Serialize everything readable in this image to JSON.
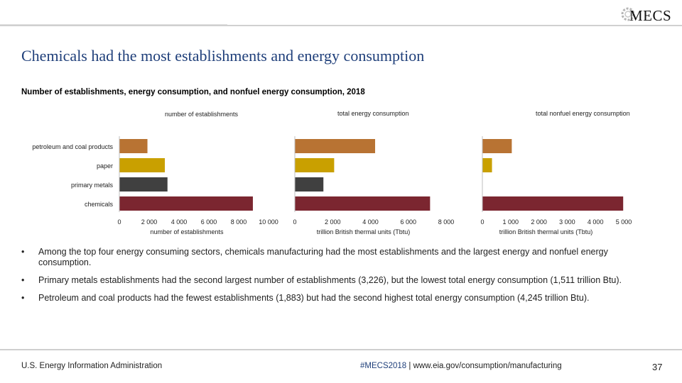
{
  "header": {
    "logo_text": "MECS",
    "title": "Chemicals had the most establishments and energy consumption"
  },
  "chart_data": {
    "type": "bar",
    "orientation": "horizontal",
    "title": "Number of establishments, energy consumption, and nonfuel energy consumption, 2018",
    "categories": [
      "petroleum and coal products",
      "paper",
      "primary metals",
      "chemicals"
    ],
    "panels": [
      {
        "name": "number of establishments",
        "xlabel": "number of establishments",
        "xlim": [
          0,
          10000
        ],
        "ticks": [
          0,
          2000,
          4000,
          6000,
          8000,
          10000
        ],
        "tick_labels": [
          "0",
          "2 000",
          "4 000",
          "6 000",
          "8 000",
          "10 000"
        ],
        "values": [
          1883,
          3050,
          3226,
          8950
        ]
      },
      {
        "name": "total energy consumption",
        "xlabel": "trillion British thermal units (Tbtu)",
        "xlim": [
          0,
          8000
        ],
        "ticks": [
          0,
          2000,
          4000,
          6000,
          8000
        ],
        "tick_labels": [
          "0",
          "2 000",
          "4 000",
          "6 000",
          "8 000"
        ],
        "values": [
          4245,
          2080,
          1511,
          7150
        ]
      },
      {
        "name": "total nonfuel energy consumption",
        "xlabel": "trillion British thermal units (Tbtu)",
        "xlim": [
          0,
          5000
        ],
        "ticks": [
          0,
          1000,
          2000,
          3000,
          4000,
          5000
        ],
        "tick_labels": [
          "0",
          "1 000",
          "2 000",
          "3 000",
          "4 000",
          "5 000"
        ],
        "values": [
          1040,
          340,
          0,
          4980
        ]
      }
    ],
    "colors": [
      "#b87333",
      "#c9a000",
      "#404040",
      "#7b2630"
    ],
    "grid": false,
    "legend": "none"
  },
  "bullets": [
    "Among the top four energy consuming sectors, chemicals manufacturing had the most establishments and the largest energy and nonfuel energy consumption.",
    "Primary metals establishments had the second largest number of establishments (3,226), but the lowest total energy consumption (1,511 trillion Btu).",
    "Petroleum and coal products had the fewest establishments (1,883) but had the second highest total energy consumption (4,245 trillion Btu)."
  ],
  "bullet_symbol": "•",
  "footer": {
    "source": "U.S. Energy Information Administration",
    "hashtag": "#MECS2018",
    "separator": " | ",
    "url": "www.eia.gov/consumption/manufacturing",
    "page_number": "37"
  }
}
